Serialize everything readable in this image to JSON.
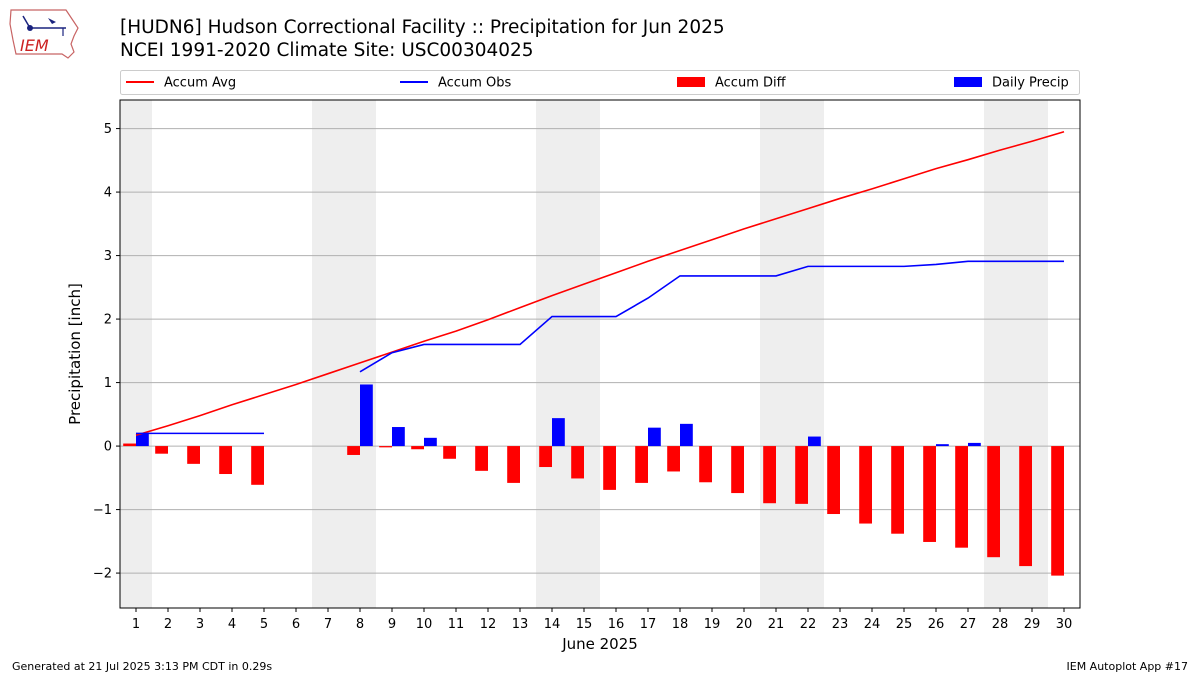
{
  "header": {
    "title": "[HUDN6] Hudson Correctional Facility :: Precipitation for Jun 2025",
    "subtitle": "NCEI 1991-2020 Climate Site: USC00304025",
    "logo_text": "IEM"
  },
  "footer": {
    "left": "Generated at 21 Jul 2025 3:13 PM CDT in 0.29s",
    "right": "IEM Autoplot App #17"
  },
  "colors": {
    "avg": "#ff0000",
    "obs": "#0000ff",
    "diff": "#ff0000",
    "daily": "#0000ff",
    "weekend": "#eeeeee",
    "grid": "#b0b0b0"
  },
  "chart_data": {
    "type": "bar",
    "title": "[HUDN6] Hudson Correctional Facility :: Precipitation for Jun 2025",
    "xlabel": "June 2025",
    "ylabel": "Precipitation [inch]",
    "xlim": [
      0.5,
      30.5
    ],
    "ylim": [
      -2.55,
      5.45
    ],
    "yticks": [
      -2,
      -1,
      0,
      1,
      2,
      3,
      4,
      5
    ],
    "ytick_labels": [
      "−2",
      "−1",
      "0",
      "1",
      "2",
      "3",
      "4",
      "5"
    ],
    "xticks": [
      1,
      2,
      3,
      4,
      5,
      6,
      7,
      8,
      9,
      10,
      11,
      12,
      13,
      14,
      15,
      16,
      17,
      18,
      19,
      20,
      21,
      22,
      23,
      24,
      25,
      26,
      27,
      28,
      29,
      30
    ],
    "xtick_labels": [
      "1",
      "2",
      "3",
      "4",
      "5",
      "6",
      "7",
      "8",
      "9",
      "10",
      "11",
      "12",
      "13",
      "14",
      "15",
      "16",
      "17",
      "18",
      "19",
      "20",
      "21",
      "22",
      "23",
      "24",
      "25",
      "26",
      "27",
      "28",
      "29",
      "30"
    ],
    "grid": "horizontal",
    "legend": {
      "placement": "top",
      "entries": [
        {
          "label": "Accum Avg",
          "kind": "line",
          "color": "#ff0000"
        },
        {
          "label": "Accum Obs",
          "kind": "line",
          "color": "#0000ff"
        },
        {
          "label": "Accum Diff",
          "kind": "bar",
          "color": "#ff0000"
        },
        {
          "label": "Daily Precip",
          "kind": "bar",
          "color": "#0000ff"
        }
      ]
    },
    "weekend_spans": [
      [
        0.5,
        1.5
      ],
      [
        6.5,
        8.5
      ],
      [
        13.5,
        15.5
      ],
      [
        20.5,
        22.5
      ],
      [
        27.5,
        29.5
      ]
    ],
    "series": [
      {
        "name": "Accum Avg",
        "kind": "line",
        "x": [
          1,
          2,
          3,
          4,
          5,
          6,
          7,
          8,
          9,
          10,
          11,
          12,
          13,
          14,
          15,
          16,
          17,
          18,
          19,
          20,
          21,
          22,
          23,
          24,
          25,
          26,
          27,
          28,
          29,
          30
        ],
        "values": [
          0.17,
          0.32,
          0.48,
          0.65,
          0.81,
          0.97,
          1.14,
          1.31,
          1.48,
          1.65,
          1.81,
          1.99,
          2.18,
          2.37,
          2.55,
          2.73,
          2.91,
          3.08,
          3.25,
          3.42,
          3.58,
          3.74,
          3.9,
          4.05,
          4.21,
          4.37,
          4.51,
          4.66,
          4.8,
          4.95
        ]
      },
      {
        "name": "Accum Obs",
        "kind": "line",
        "segments": [
          {
            "x": [
              1,
              2,
              3,
              4,
              5
            ],
            "values": [
              0.2,
              0.2,
              0.2,
              0.2,
              0.2
            ]
          },
          {
            "x": [
              8,
              9,
              10,
              11,
              12,
              13,
              14,
              15,
              16,
              17,
              18,
              19,
              20,
              21,
              22,
              23,
              24,
              25,
              26,
              27,
              28,
              29,
              30
            ],
            "values": [
              1.17,
              1.47,
              1.6,
              1.6,
              1.6,
              1.6,
              2.04,
              2.04,
              2.04,
              2.33,
              2.68,
              2.68,
              2.68,
              2.68,
              2.83,
              2.83,
              2.83,
              2.83,
              2.86,
              2.91,
              2.91,
              2.91,
              2.91
            ]
          }
        ]
      },
      {
        "name": "Accum Diff",
        "kind": "bar",
        "x": [
          1,
          2,
          3,
          4,
          5,
          8,
          9,
          10,
          11,
          12,
          13,
          14,
          15,
          16,
          17,
          18,
          19,
          20,
          21,
          22,
          23,
          24,
          25,
          26,
          27,
          28,
          29,
          30
        ],
        "values": [
          0.04,
          -0.12,
          -0.28,
          -0.44,
          -0.61,
          -0.14,
          -0.02,
          -0.05,
          -0.2,
          -0.39,
          -0.58,
          -0.33,
          -0.51,
          -0.69,
          -0.58,
          -0.4,
          -0.57,
          -0.74,
          -0.9,
          -0.91,
          -1.07,
          -1.22,
          -1.38,
          -1.51,
          -1.6,
          -1.75,
          -1.89,
          -2.04
        ]
      },
      {
        "name": "Daily Precip",
        "kind": "bar",
        "x": [
          1,
          8,
          9,
          10,
          14,
          17,
          18,
          22,
          26,
          27
        ],
        "values": [
          0.2,
          0.97,
          0.3,
          0.13,
          0.44,
          0.29,
          0.35,
          0.15,
          0.03,
          0.05
        ]
      }
    ]
  }
}
